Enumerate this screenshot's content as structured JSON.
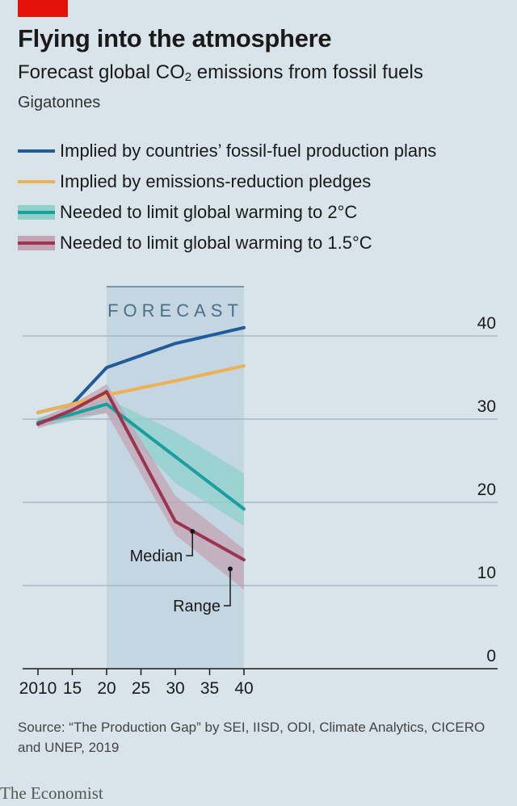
{
  "header": {
    "title": "Flying into the atmosphere",
    "subtitle_main": "Forecast global CO",
    "subtitle_sub": "2",
    "subtitle_rest": " emissions from fossil fuels",
    "unit": "Gigatonnes"
  },
  "colors": {
    "background": "#d9e4ea",
    "forecast_shade": "#c3d6e2",
    "production": "#1f5c99",
    "pledges": "#ebb153",
    "two_degree": "#1a9e9e",
    "two_degree_band": "#8fd0cb",
    "one_five_degree": "#9c3350",
    "one_five_band": "#c3a4b4",
    "brand_red": "#e3120b"
  },
  "legend": [
    {
      "label": "Implied by countries’ fossil-fuel production plans",
      "color": "#1f5c99",
      "band": null
    },
    {
      "label": "Implied by emissions-reduction pledges",
      "color": "#ebb153",
      "band": null
    },
    {
      "label": "Needed to limit global warming to 2°C",
      "color": "#1a9e9e",
      "band": "#8fd0cb"
    },
    {
      "label": "Needed to limit global warming to 1.5°C",
      "color": "#9c3350",
      "band": "#c3a4b4"
    }
  ],
  "chart_data": {
    "type": "line",
    "forecast_label": "FORECAST",
    "forecast_range": [
      2020,
      2040
    ],
    "xlim": [
      2009,
      2041
    ],
    "ylim": [
      0,
      42
    ],
    "x_ticks": [
      2010,
      2015,
      2020,
      2025,
      2030,
      2035,
      2040
    ],
    "x_tick_labels": [
      "2010",
      "15",
      "20",
      "25",
      "30",
      "35",
      "40"
    ],
    "y_ticks": [
      0,
      10,
      20,
      30,
      40
    ],
    "y_tick_labels": [
      "0",
      "10",
      "20",
      "30",
      "40"
    ],
    "series": [
      {
        "key": "production",
        "x": [
          2010,
          2015,
          2020,
          2030,
          2040
        ],
        "y": [
          30.8,
          31.8,
          36.2,
          39.1,
          41.0
        ]
      },
      {
        "key": "pledges",
        "x": [
          2010,
          2015,
          2020,
          2030,
          2040
        ],
        "y": [
          30.8,
          31.8,
          32.9,
          34.6,
          36.4
        ]
      },
      {
        "key": "two_degree",
        "x": [
          2010,
          2015,
          2020,
          2030,
          2040
        ],
        "y": [
          29.6,
          30.6,
          31.8,
          25.5,
          19.2
        ],
        "range_low": [
          29.0,
          29.8,
          30.8,
          22.3,
          17.2
        ],
        "range_high": [
          30.2,
          31.3,
          32.5,
          28.5,
          23.5
        ]
      },
      {
        "key": "one_five_degree",
        "x": [
          2010,
          2015,
          2020,
          2030,
          2040
        ],
        "y": [
          29.4,
          31.1,
          33.3,
          17.7,
          13.1
        ],
        "range_low": [
          28.9,
          30.2,
          30.7,
          16.1,
          9.5
        ],
        "range_high": [
          30.0,
          31.8,
          34.2,
          20.8,
          14.4
        ]
      }
    ],
    "annotations": [
      {
        "text": "Median",
        "target": "one_five_degree",
        "x": 2032.5,
        "y": 16.5
      },
      {
        "text": "Range",
        "target": "one_five_degree",
        "x": 2038,
        "y": 12.0
      }
    ]
  },
  "source": "Source: “The Production Gap” by SEI, IISD, ODI, Climate Analytics, CICERO and UNEP, 2019",
  "brand": "The Economist"
}
